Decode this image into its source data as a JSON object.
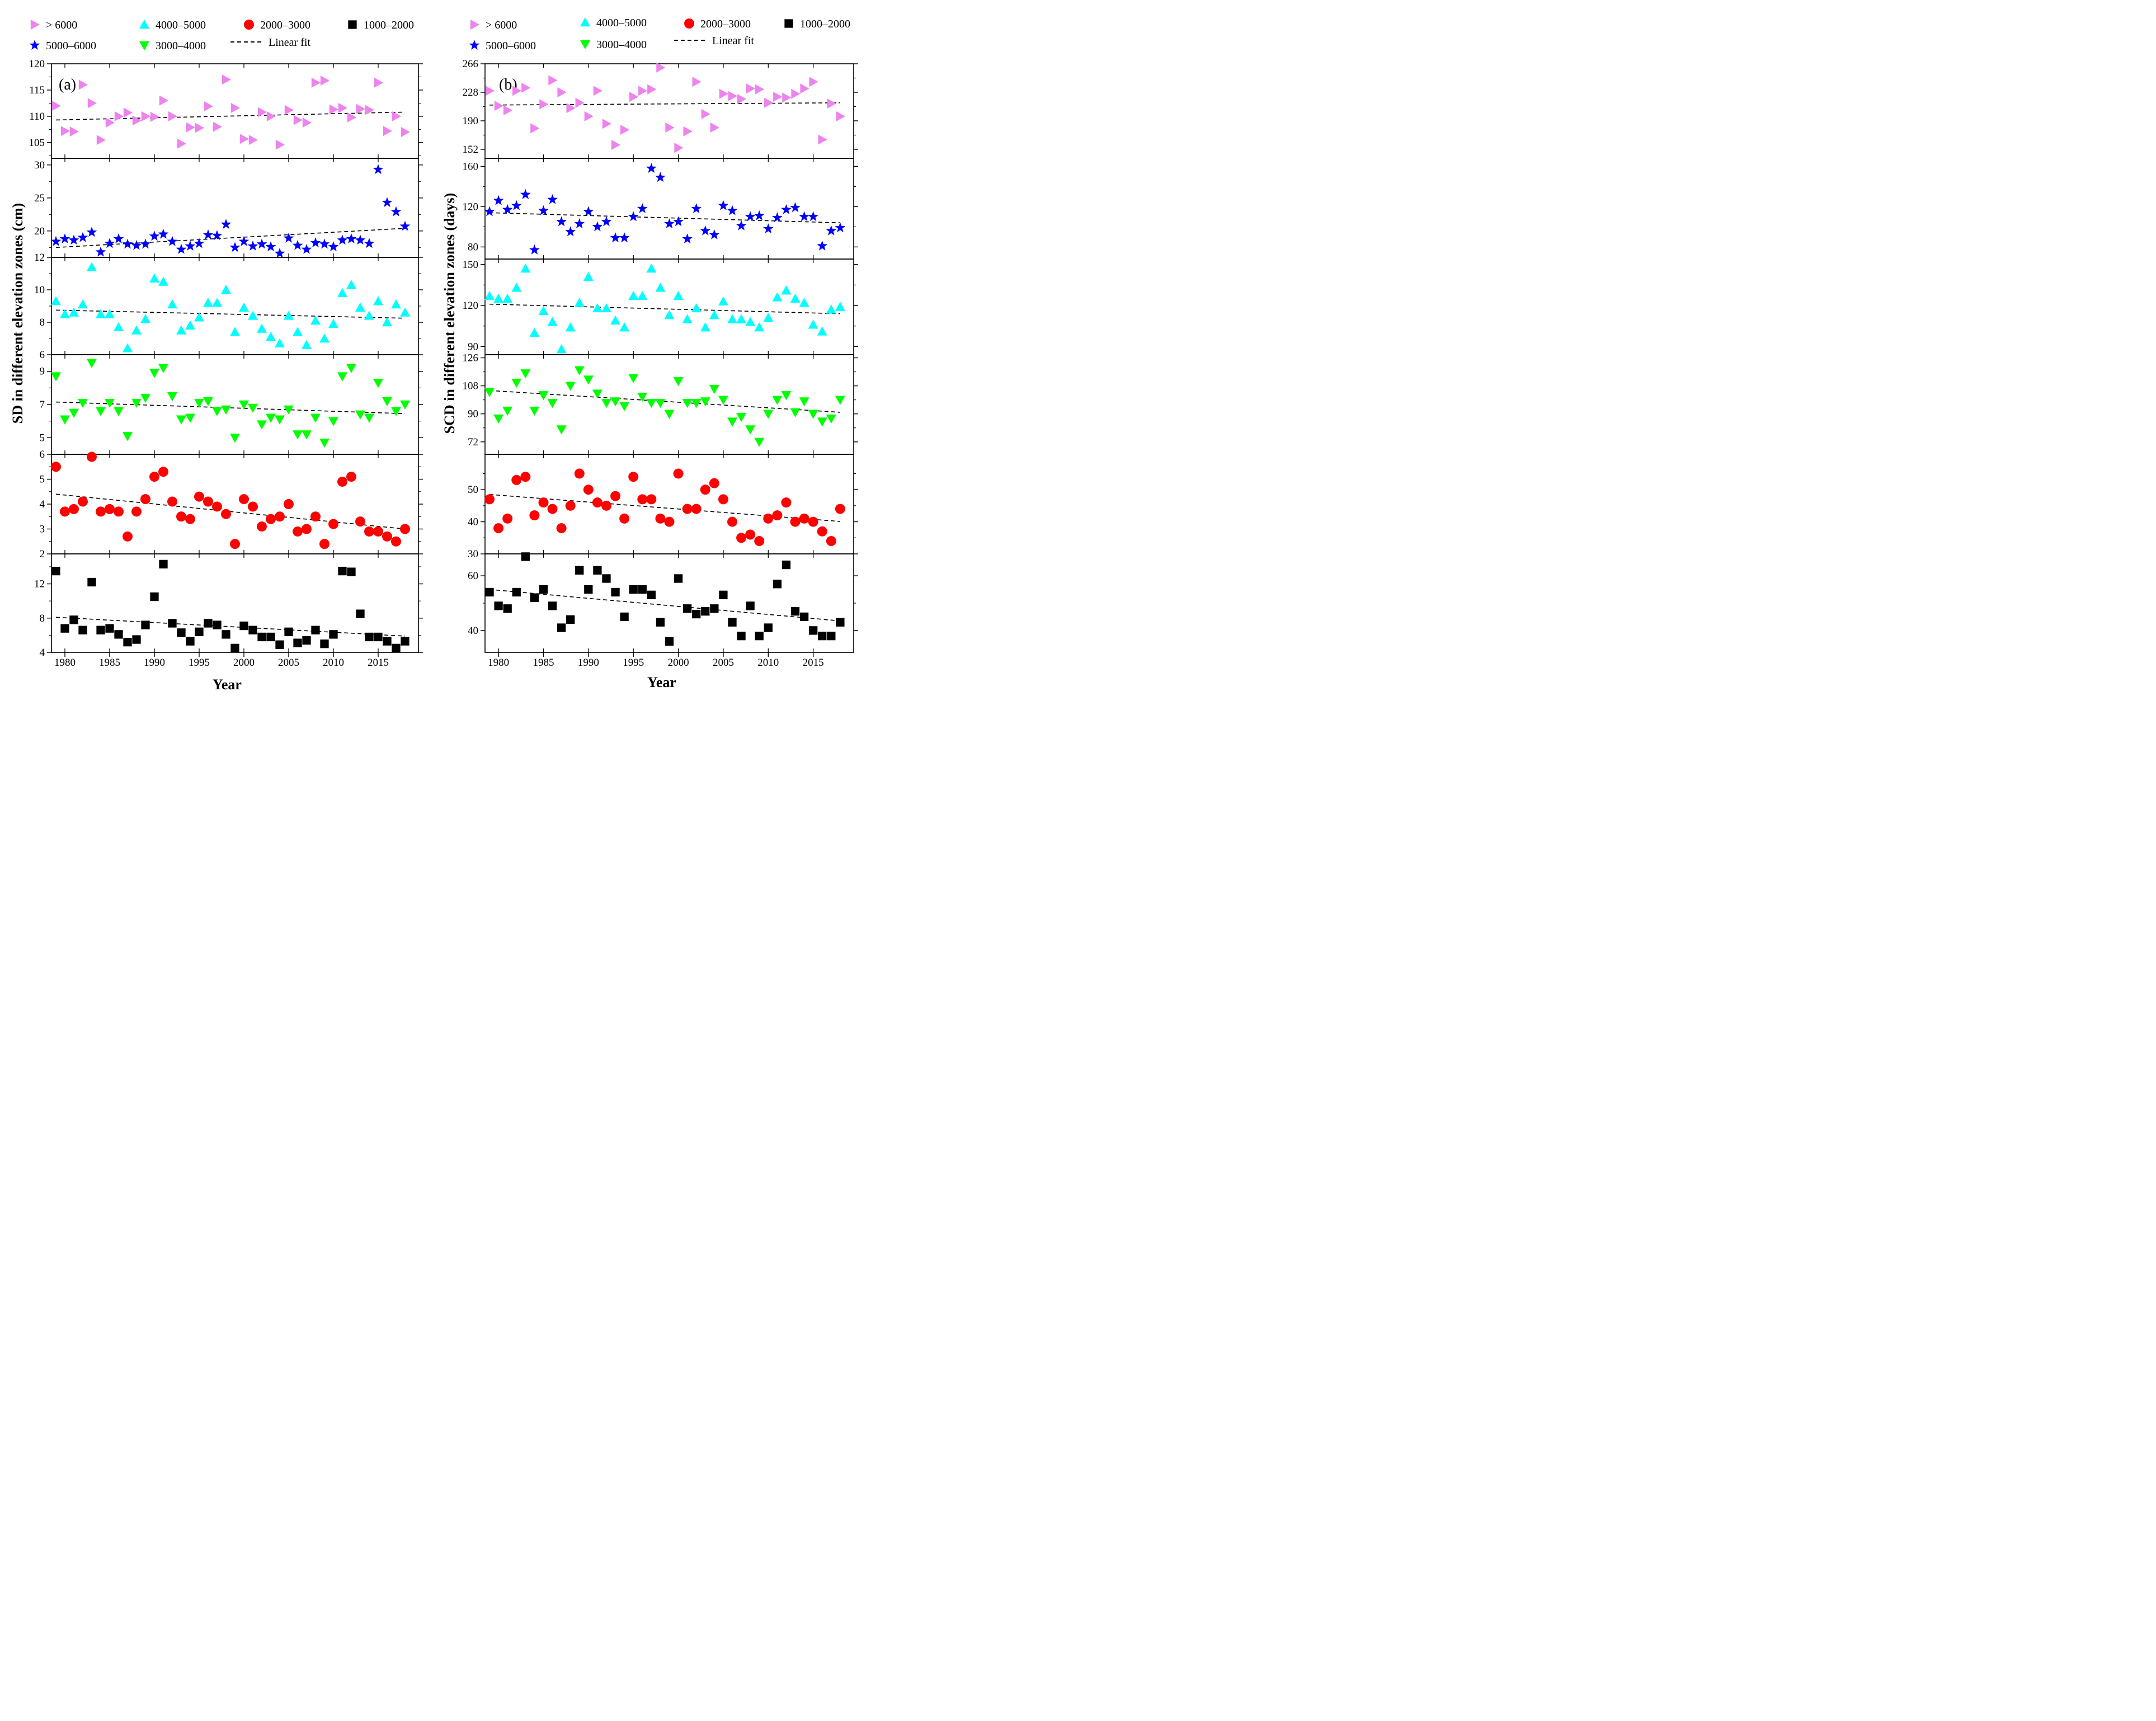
{
  "legend": {
    "groups": [
      {
        "key": "gt6000",
        "label": "> 6000",
        "color": "#ee82ee",
        "marker": "triangle-right"
      },
      {
        "key": "z5000",
        "label": "5000–6000",
        "color": "#0000ff",
        "marker": "star"
      },
      {
        "key": "z4000",
        "label": "4000–5000",
        "color": "#00ffff",
        "marker": "triangle-up"
      },
      {
        "key": "z3000",
        "label": "3000–4000",
        "color": "#00ff00",
        "marker": "triangle-down"
      },
      {
        "key": "z2000",
        "label": "2000–3000",
        "color": "#ff0000",
        "marker": "circle"
      },
      {
        "key": "z1000",
        "label": "1000–2000",
        "color": "#000000",
        "marker": "square"
      }
    ],
    "fit_label_a": "Linear fit",
    "fit_label_b": "Linear  fit"
  },
  "chart_data": [
    {
      "type": "scatter",
      "panel_label": "(a)",
      "ylabel": "SD in different  elevation zones (cm)",
      "xlabel": "Year",
      "xlim": [
        1978.5,
        2019.5
      ],
      "xticks": [
        1980,
        1985,
        1990,
        1995,
        2000,
        2005,
        2010,
        2015
      ],
      "years": [
        1979,
        1980,
        1981,
        1982,
        1983,
        1984,
        1985,
        1986,
        1987,
        1988,
        1989,
        1990,
        1991,
        1992,
        1993,
        1994,
        1995,
        1996,
        1997,
        1998,
        1999,
        2000,
        2001,
        2002,
        2003,
        2004,
        2005,
        2006,
        2007,
        2008,
        2009,
        2010,
        2011,
        2012,
        2013,
        2014,
        2015,
        2016,
        2017,
        2018
      ],
      "series": [
        {
          "name": "> 6000",
          "ylim": [
            102,
            120
          ],
          "yticks": [
            105,
            110,
            115,
            120
          ],
          "values": [
            112,
            107.2,
            107.1,
            116,
            112.5,
            105.5,
            108.8,
            110,
            110.7,
            109.2,
            110,
            109.9,
            113,
            110,
            104.8,
            107.9,
            107.8,
            111.9,
            108,
            117,
            111.6,
            105.7,
            105.5,
            110.8,
            110,
            104.6,
            111.2,
            109.3,
            108.8,
            116.4,
            116.8,
            111.3,
            111.6,
            109.8,
            111.4,
            111.2,
            116.4,
            107.2,
            110,
            107
          ],
          "fit": [
            109.3,
            110.8
          ]
        },
        {
          "name": "5000–6000",
          "ylim": [
            16,
            31
          ],
          "yticks": [
            20,
            25,
            30
          ],
          "values": [
            18.4,
            18.8,
            18.6,
            19,
            19.8,
            16.8,
            18.1,
            18.8,
            18,
            17.8,
            18,
            19.2,
            19.5,
            18.4,
            17.2,
            17.7,
            18.1,
            19.4,
            19.3,
            21,
            17.5,
            18.4,
            17.7,
            18,
            17.6,
            16.6,
            18.9,
            17.8,
            17.2,
            18.2,
            18,
            17.6,
            18.6,
            18.8,
            18.6,
            18.1,
            29.3,
            24.3,
            22.9,
            20.7
          ],
          "fit": [
            17.5,
            20.4
          ]
        },
        {
          "name": "4000–5000",
          "ylim": [
            6,
            12
          ],
          "yticks": [
            6,
            8,
            10,
            12
          ],
          "values": [
            9.3,
            8.5,
            8.6,
            9.1,
            11.4,
            8.5,
            8.5,
            7.7,
            6.4,
            7.5,
            8.2,
            10.7,
            10.5,
            9.1,
            7.5,
            7.8,
            8.3,
            9.2,
            9.2,
            10,
            7.4,
            8.9,
            8.4,
            7.6,
            7.1,
            6.7,
            8.4,
            7.4,
            6.6,
            8.1,
            7,
            7.9,
            9.8,
            10.3,
            8.9,
            8.4,
            9.3,
            8,
            9.1,
            8.6
          ],
          "fit": [
            8.75,
            8.25
          ]
        },
        {
          "name": "3000–4000",
          "ylim": [
            4,
            10
          ],
          "yticks": [
            5,
            7,
            9
          ],
          "values": [
            8.7,
            6.1,
            6.5,
            7.1,
            9.5,
            6.6,
            7.1,
            6.6,
            5.1,
            7.1,
            7.4,
            8.9,
            9.2,
            7.5,
            6.1,
            6.2,
            7.1,
            7.2,
            6.6,
            6.7,
            5,
            7,
            6.8,
            5.8,
            6.2,
            6.1,
            6.7,
            5.2,
            5.2,
            6.2,
            4.7,
            6.0,
            8.7,
            9.2,
            6.4,
            6.2,
            8.3,
            7.2,
            6.6,
            7.0
          ],
          "fit": [
            7.15,
            6.45
          ]
        },
        {
          "name": "2000–3000",
          "ylim": [
            2,
            6
          ],
          "yticks": [
            2,
            3,
            4,
            5,
            6
          ],
          "values": [
            5.5,
            3.7,
            3.8,
            4.1,
            5.9,
            3.7,
            3.8,
            3.7,
            2.7,
            3.7,
            4.2,
            5.1,
            5.3,
            4.1,
            3.5,
            3.4,
            4.3,
            4.1,
            3.9,
            3.6,
            2.4,
            4.2,
            3.9,
            3.1,
            3.4,
            3.5,
            4,
            2.9,
            3,
            3.5,
            2.4,
            3.2,
            4.9,
            5.1,
            3.3,
            2.9,
            2.9,
            2.7,
            2.5,
            3
          ],
          "fit": [
            4.4,
            3.0
          ]
        },
        {
          "name": "1000–2000",
          "ylim": [
            4,
            15.5
          ],
          "yticks": [
            4,
            8,
            12
          ],
          "values": [
            13.5,
            6.8,
            7.8,
            6.6,
            12.2,
            6.6,
            6.8,
            6.1,
            5.2,
            5.5,
            7.2,
            10.5,
            14.3,
            7.4,
            6.3,
            5.3,
            6.4,
            7.4,
            7.2,
            6.1,
            4.5,
            7.1,
            6.6,
            5.8,
            5.8,
            4.9,
            6.4,
            5.1,
            5.4,
            6.6,
            5,
            6.1,
            13.5,
            13.4,
            8.5,
            5.8,
            5.8,
            5.3,
            4.5,
            5.3
          ],
          "fit": [
            8.1,
            5.9
          ]
        }
      ]
    },
    {
      "type": "scatter",
      "panel_label": "(b)",
      "ylabel": "SCD in different elevation zones (days)",
      "xlabel": "Year",
      "xlim": [
        1978.5,
        2019.5
      ],
      "xticks": [
        1980,
        1985,
        1990,
        1995,
        2000,
        2005,
        2010,
        2015
      ],
      "years": [
        1979,
        1980,
        1981,
        1982,
        1983,
        1984,
        1985,
        1986,
        1987,
        1988,
        1989,
        1990,
        1991,
        1992,
        1993,
        1994,
        1995,
        1996,
        1997,
        1998,
        1999,
        2000,
        2001,
        2002,
        2003,
        2004,
        2005,
        2006,
        2007,
        2008,
        2009,
        2010,
        2011,
        2012,
        2013,
        2014,
        2015,
        2016,
        2017,
        2018
      ],
      "series": [
        {
          "name": "> 6000",
          "ylim": [
            140,
            266
          ],
          "yticks": [
            152,
            190,
            228,
            266
          ],
          "values": [
            230,
            210,
            204,
            230,
            234,
            180,
            212,
            244,
            228,
            207,
            214,
            196,
            230,
            186,
            158,
            178,
            222,
            230,
            232,
            261,
            181,
            154,
            176,
            242,
            199,
            181,
            226,
            223,
            219,
            233,
            232,
            214,
            222,
            221,
            226,
            233,
            242,
            165,
            213,
            196
          ],
          "fit": [
            211,
            214
          ]
        },
        {
          "name": "5000–6000",
          "ylim": [
            68,
            168
          ],
          "yticks": [
            80,
            120,
            160
          ],
          "values": [
            115,
            126,
            117,
            121,
            132,
            77,
            116,
            127,
            105,
            95,
            103,
            115,
            100,
            105,
            89,
            89,
            110,
            118,
            158,
            149,
            103,
            105,
            88,
            118,
            96,
            92,
            121,
            116,
            101,
            110,
            111,
            98,
            109,
            117,
            119,
            110,
            110,
            81,
            96,
            99
          ],
          "fit": [
            114,
            104
          ]
        },
        {
          "name": "4000–5000",
          "ylim": [
            84,
            154
          ],
          "yticks": [
            90,
            120,
            150
          ],
          "values": [
            127,
            125,
            125,
            133,
            147,
            100,
            116,
            108,
            88,
            104,
            122,
            141,
            118,
            118,
            109,
            104,
            127,
            127,
            147,
            133,
            113,
            127,
            110,
            118,
            104,
            113,
            123,
            110,
            110,
            108,
            104,
            111,
            126,
            131,
            125,
            122,
            106,
            101,
            117,
            119
          ],
          "fit": [
            121,
            114
          ]
        },
        {
          "name": "3000–4000",
          "ylim": [
            64,
            128
          ],
          "yticks": [
            72,
            90,
            108,
            126
          ],
          "values": [
            104,
            87,
            92,
            110,
            116,
            92,
            102,
            97,
            80,
            108,
            118,
            112,
            103,
            97,
            98,
            95,
            113,
            101,
            97,
            97,
            90,
            111,
            97,
            97,
            98,
            106,
            99,
            85,
            88,
            80,
            72,
            90,
            99,
            102,
            91,
            98,
            90,
            85,
            87,
            99
          ],
          "fit": [
            105,
            91
          ]
        },
        {
          "name": "2000–3000",
          "ylim": [
            30,
            61
          ],
          "yticks": [
            30,
            40,
            50
          ],
          "values": [
            47,
            38,
            41,
            53,
            54,
            42,
            46,
            44,
            38,
            45,
            55,
            50,
            46,
            45,
            48,
            41,
            54,
            47,
            47,
            41,
            40,
            55,
            44,
            44,
            50,
            52,
            47,
            40,
            35,
            36,
            34,
            41,
            42,
            46,
            40,
            41,
            40,
            37,
            34,
            44
          ],
          "fit": [
            48.5,
            40.1
          ]
        },
        {
          "name": "1000–2000",
          "ylim": [
            32,
            68
          ],
          "yticks": [
            40,
            60
          ],
          "values": [
            54,
            49,
            48,
            54,
            67,
            52,
            55,
            49,
            41,
            44,
            62,
            55,
            62,
            59,
            54,
            45,
            55,
            55,
            53,
            43,
            36,
            59,
            48,
            46,
            47,
            48,
            53,
            43,
            38,
            49,
            38,
            41,
            57,
            64,
            47,
            45,
            40,
            38,
            38,
            43
          ],
          "fit": [
            55,
            43.5
          ]
        }
      ]
    }
  ]
}
